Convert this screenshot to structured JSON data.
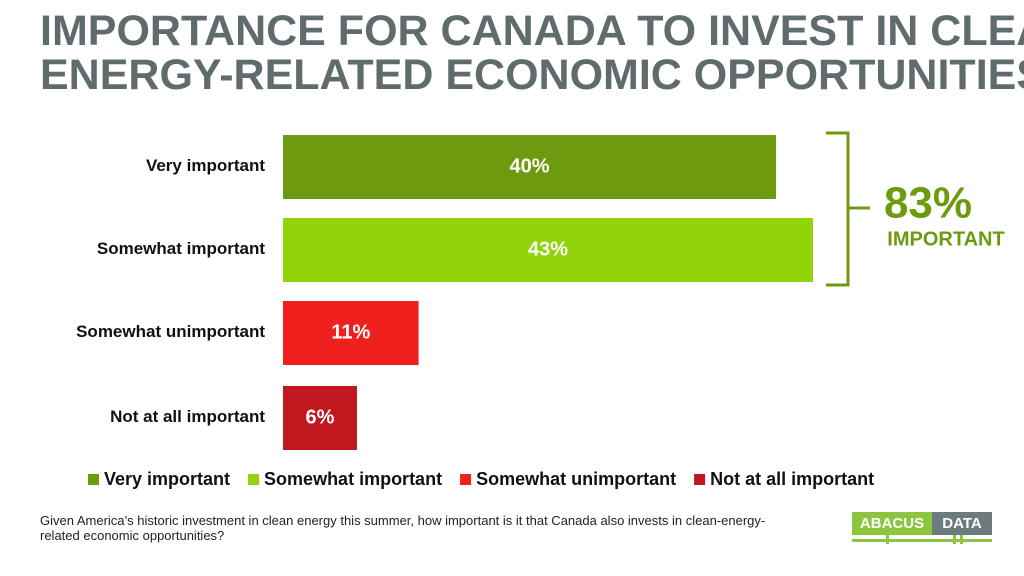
{
  "chart_data": {
    "type": "bar",
    "orientation": "horizontal",
    "title": "IMPORTANCE FOR CANADA TO INVEST IN CLEAN-ENERGY-RELATED ECONOMIC OPPORTUNITIES",
    "categories": [
      "Very important",
      "Somewhat important",
      "Somewhat unimportant",
      "Not at all important"
    ],
    "values": [
      40,
      43,
      11,
      6
    ],
    "value_labels": [
      "40%",
      "43%",
      "11%",
      "6%"
    ],
    "colors": [
      "#6e9a10",
      "#92d40a",
      "#f0201e",
      "#c0181e"
    ],
    "annotation": {
      "label": "83%",
      "text": "IMPORTANT"
    },
    "footnote": "Given America’s historic investment in clean energy this summer, how important is it that Canada also invests in clean-energy-related economic opportunities?",
    "logo": [
      "ABACUS",
      "DATA"
    ]
  }
}
